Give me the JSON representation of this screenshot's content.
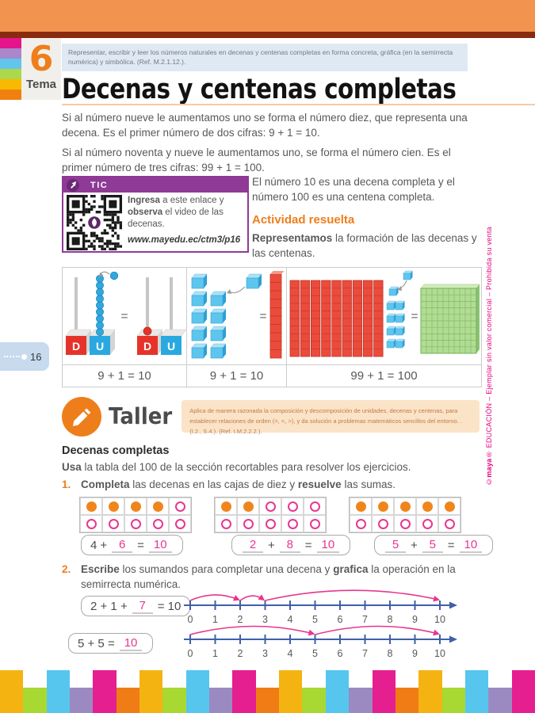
{
  "colors": {
    "band_orange": "#f2944f",
    "band_maroon": "#8a2a0f",
    "accent_orange": "#ee7e1b",
    "tic_purple": "#8e3a96",
    "pink_brand": "#e6007e",
    "answer_pink": "#e8368f",
    "numberline_blue": "#3f5fa9",
    "tab_colors": [
      "#e5148c",
      "#a887cb",
      "#62c5ec",
      "#abd94b",
      "#f8ba00",
      "#f0810f"
    ],
    "bar_tall": [
      "#f5b312",
      "#56c6ee",
      "#e51f8f"
    ],
    "bar_short": [
      "#a8d832",
      "#9b8ac2",
      "#f07c16"
    ]
  },
  "header": {
    "tema_number": "6",
    "tema_label": "Tema",
    "standard": "Representar, escribir y leer los números naturales en decenas y centenas completas en forma concreta, gráfica (en la semirrecta numérica) y simbólica. (Ref. M.2.1.12.).",
    "title": "Decenas y centenas completas"
  },
  "intro": {
    "p1": "Si al número nueve le aumentamos uno se forma el número diez, que representa una decena. Es el primer número de dos cifras: 9 + 1 = 10.",
    "p2": "Si al número noventa y nueve le aumentamos uno, se forma el número cien. Es el primer número de tres cifras: 99 + 1 = 100."
  },
  "tic": {
    "label": "TIC",
    "text": [
      {
        "t": "Ingresa",
        "b": true
      },
      {
        "t": " a este enlace y "
      },
      {
        "t": "observa",
        "b": true
      },
      {
        "t": " el video de las decenas."
      }
    ],
    "url": "www.mayedu.ec/ctm3/p16"
  },
  "activity": {
    "note": "El número 10 es una decena completa y el número 100 es una centena completa.",
    "title": "Actividad resuelta",
    "lead": [
      {
        "t": "Representamos",
        "b": true
      },
      {
        "t": " la formación de las decenas y las centenas."
      }
    ]
  },
  "panel": {
    "d_label": "D",
    "u_label": "U",
    "eq_sign": "=",
    "captions": [
      "9 + 1 = 10",
      "9 + 1 = 10",
      "99 + 1 = 100"
    ]
  },
  "taller": {
    "label": "Taller",
    "text": "Aplica de manera razonada la composición y descomposición de unidades, decenas y centenas, para establecer relaciones de orden (=, <, >), y da solución a problemas matemáticos sencillos del entorno. . (I.2., S.4.). (Ref. I.M.2.2.2.)."
  },
  "section": {
    "heading": "Decenas completas",
    "lead": [
      {
        "t": "Usa",
        "b": true
      },
      {
        "t": " la tabla del 100 de la sección recortables para resolver los ejercicios."
      }
    ]
  },
  "exercise1": {
    "number": "1.",
    "instruction": [
      {
        "t": "Completa",
        "b": true
      },
      {
        "t": " las decenas en las cajas de diez y "
      },
      {
        "t": "resuelve",
        "b": true
      },
      {
        "t": " las sumas."
      }
    ],
    "frames": [
      {
        "filled": 4
      },
      {
        "filled": 2
      },
      {
        "filled": 5
      }
    ],
    "equations": [
      [
        {
          "t": "4",
          "k": "p"
        },
        {
          "t": "+",
          "k": "p"
        },
        {
          "t": "6",
          "k": "a"
        },
        {
          "t": "=",
          "k": "p"
        },
        {
          "t": "10",
          "k": "a"
        }
      ],
      [
        {
          "t": "2",
          "k": "a"
        },
        {
          "t": "+",
          "k": "p"
        },
        {
          "t": "8",
          "k": "a"
        },
        {
          "t": "=",
          "k": "p"
        },
        {
          "t": "10",
          "k": "a"
        }
      ],
      [
        {
          "t": "5",
          "k": "a"
        },
        {
          "t": "+",
          "k": "p"
        },
        {
          "t": "5",
          "k": "a"
        },
        {
          "t": "=",
          "k": "p"
        },
        {
          "t": "10",
          "k": "a"
        }
      ]
    ]
  },
  "exercise2": {
    "number": "2.",
    "instruction": [
      {
        "t": "Escribe",
        "b": true
      },
      {
        "t": " los sumandos para completar una decena y "
      },
      {
        "t": "grafica",
        "b": true
      },
      {
        "t": " la operación en la semirrecta numérica."
      }
    ],
    "rows": [
      {
        "equation": [
          {
            "t": "2 + 1 +",
            "k": "p"
          },
          {
            "t": "7",
            "k": "a"
          },
          {
            "t": "= 10",
            "k": "p"
          }
        ],
        "numberline": {
          "labels": [
            "0",
            "1",
            "2",
            "3",
            "4",
            "5",
            "6",
            "7",
            "8",
            "9",
            "10"
          ],
          "arcs": [
            [
              0,
              2
            ],
            [
              2,
              3
            ],
            [
              3,
              10
            ]
          ]
        }
      },
      {
        "equation": [
          {
            "t": "5 + 5 =",
            "k": "p"
          },
          {
            "t": "10",
            "k": "a"
          }
        ],
        "numberline": {
          "labels": [
            "0",
            "1",
            "2",
            "3",
            "4",
            "5",
            "6",
            "7",
            "8",
            "9",
            "10"
          ],
          "arcs": [
            [
              0,
              5
            ],
            [
              5,
              10
            ]
          ]
        }
      }
    ]
  },
  "footer": {
    "page_number": "16",
    "side_note": [
      {
        "t": "©"
      },
      {
        "t": "maya",
        "b": true
      },
      {
        "t": "® EDUCACIÓN – Ejemplar sin valor comercial – Prohibida su venta"
      }
    ]
  }
}
